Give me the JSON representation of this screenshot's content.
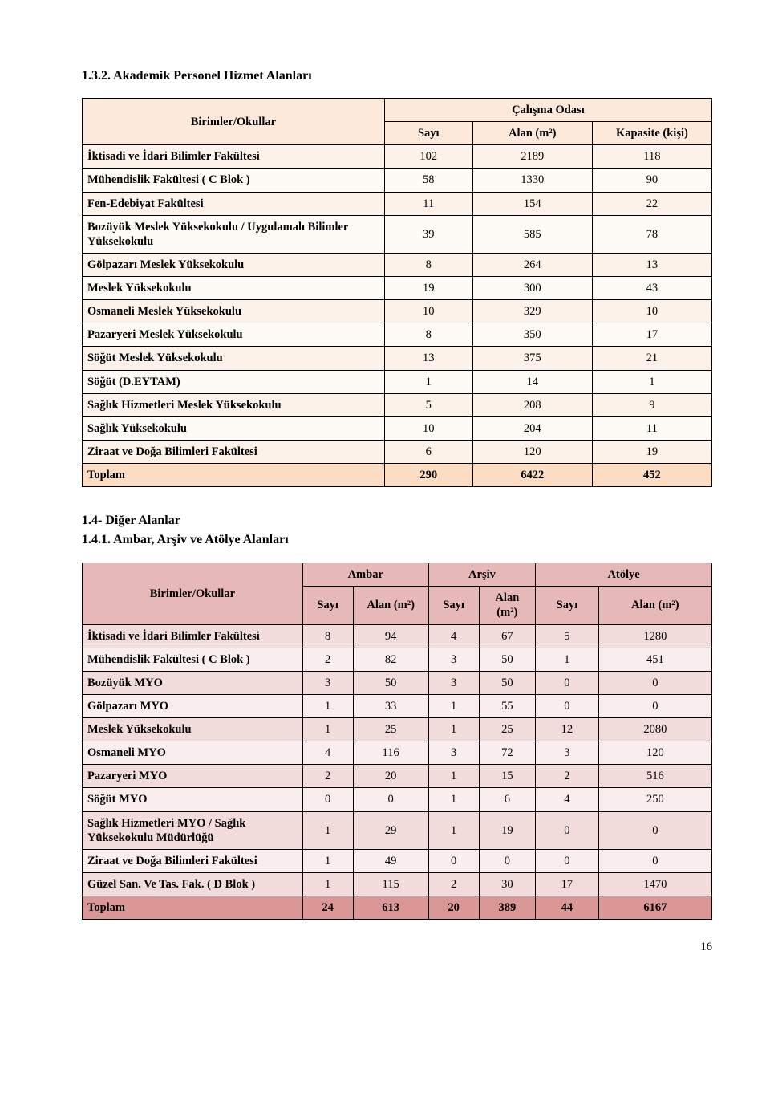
{
  "section1": {
    "heading": "1.3.2. Akademik Personel Hizmet Alanları",
    "group_header": "Çalışma Odası",
    "col_unit": "Birimler/Okullar",
    "col_sayi": "Sayı",
    "col_alan": "Alan (m²)",
    "col_kapasite": "Kapasite (kişi)",
    "rows": [
      {
        "label": "İktisadi ve İdari Bilimler Fakültesi",
        "sayi": "102",
        "alan": "2189",
        "kap": "118"
      },
      {
        "label": "Mühendislik Fakültesi ( C Blok )",
        "sayi": "58",
        "alan": "1330",
        "kap": "90"
      },
      {
        "label": "Fen-Edebiyat Fakültesi",
        "sayi": "11",
        "alan": "154",
        "kap": "22"
      },
      {
        "label": "Bozüyük Meslek Yüksekokulu / Uygulamalı Bilimler Yüksekokulu",
        "sayi": "39",
        "alan": "585",
        "kap": "78"
      },
      {
        "label": "Gölpazarı Meslek Yüksekokulu",
        "sayi": "8",
        "alan": "264",
        "kap": "13"
      },
      {
        "label": "Meslek Yüksekokulu",
        "sayi": "19",
        "alan": "300",
        "kap": "43"
      },
      {
        "label": "Osmaneli Meslek Yüksekokulu",
        "sayi": "10",
        "alan": "329",
        "kap": "10"
      },
      {
        "label": "Pazaryeri Meslek Yüksekokulu",
        "sayi": "8",
        "alan": "350",
        "kap": "17"
      },
      {
        "label": "Söğüt Meslek Yüksekokulu",
        "sayi": "13",
        "alan": "375",
        "kap": "21"
      },
      {
        "label": "Söğüt (D.EYTAM)",
        "sayi": "1",
        "alan": "14",
        "kap": "1"
      },
      {
        "label": "Sağlık Hizmetleri Meslek Yüksekokulu",
        "sayi": "5",
        "alan": "208",
        "kap": "9"
      },
      {
        "label": "Sağlık Yüksekokulu",
        "sayi": "10",
        "alan": "204",
        "kap": "11"
      },
      {
        "label": "Ziraat ve Doğa Bilimleri Fakültesi",
        "sayi": "6",
        "alan": "120",
        "kap": "19"
      }
    ],
    "total": {
      "label": "Toplam",
      "sayi": "290",
      "alan": "6422",
      "kap": "452"
    }
  },
  "section2": {
    "heading_a": "1.4- Diğer Alanlar",
    "heading_b": "1.4.1. Ambar, Arşiv ve Atölye Alanları",
    "col_unit": "Birimler/Okullar",
    "group_ambar": "Ambar",
    "group_arsiv": "Arşiv",
    "group_atolye": "Atölye",
    "col_sayi": "Sayı",
    "col_alan": "Alan (m²)",
    "col_alan_br": "Alan\n(m²)",
    "rows": [
      {
        "label": "İktisadi ve İdari Bilimler Fakültesi",
        "a_s": "8",
        "a_m": "94",
        "r_s": "4",
        "r_m": "67",
        "t_s": "5",
        "t_m": "1280"
      },
      {
        "label": "Mühendislik Fakültesi ( C Blok )",
        "a_s": "2",
        "a_m": "82",
        "r_s": "3",
        "r_m": "50",
        "t_s": "1",
        "t_m": "451"
      },
      {
        "label": "Bozüyük MYO",
        "a_s": "3",
        "a_m": "50",
        "r_s": "3",
        "r_m": "50",
        "t_s": "0",
        "t_m": "0"
      },
      {
        "label": "Gölpazarı MYO",
        "a_s": "1",
        "a_m": "33",
        "r_s": "1",
        "r_m": "55",
        "t_s": "0",
        "t_m": "0"
      },
      {
        "label": "Meslek Yüksekokulu",
        "a_s": "1",
        "a_m": "25",
        "r_s": "1",
        "r_m": "25",
        "t_s": "12",
        "t_m": "2080"
      },
      {
        "label": "Osmaneli MYO",
        "a_s": "4",
        "a_m": "116",
        "r_s": "3",
        "r_m": "72",
        "t_s": "3",
        "t_m": "120"
      },
      {
        "label": "Pazaryeri MYO",
        "a_s": "2",
        "a_m": "20",
        "r_s": "1",
        "r_m": "15",
        "t_s": "2",
        "t_m": "516"
      },
      {
        "label": "Söğüt MYO",
        "a_s": "0",
        "a_m": "0",
        "r_s": "1",
        "r_m": "6",
        "t_s": "4",
        "t_m": "250"
      },
      {
        "label": "Sağlık Hizmetleri MYO / Sağlık Yüksekokulu Müdürlüğü",
        "a_s": "1",
        "a_m": "29",
        "r_s": "1",
        "r_m": "19",
        "t_s": "0",
        "t_m": "0"
      },
      {
        "label": "Ziraat ve Doğa Bilimleri Fakültesi",
        "a_s": "1",
        "a_m": "49",
        "r_s": "0",
        "r_m": "0",
        "t_s": "0",
        "t_m": "0"
      },
      {
        "label": "Güzel San. Ve Tas. Fak. ( D Blok )",
        "a_s": "1",
        "a_m": "115",
        "r_s": "2",
        "r_m": "30",
        "t_s": "17",
        "t_m": "1470"
      }
    ],
    "total": {
      "label": "Toplam",
      "a_s": "24",
      "a_m": "613",
      "r_s": "20",
      "r_m": "389",
      "t_s": "44",
      "t_m": "6167"
    }
  },
  "page_number": "16"
}
